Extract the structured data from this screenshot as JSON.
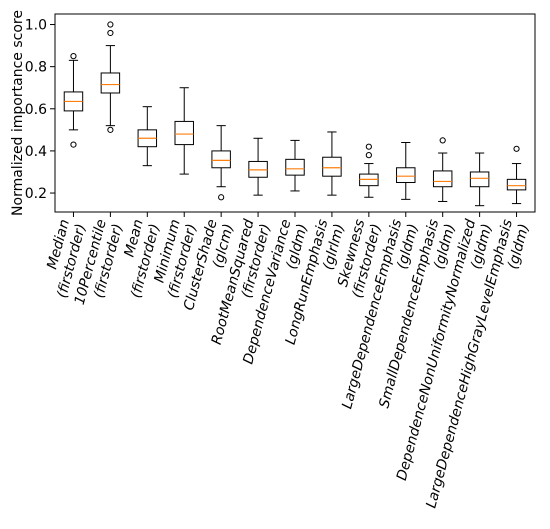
{
  "chart_data": {
    "type": "box",
    "title": "",
    "xlabel": "",
    "ylabel": "Normalized importance score",
    "ylim": [
      0.11,
      1.05
    ],
    "yticks": [
      0.2,
      0.4,
      0.6,
      0.8,
      1.0
    ],
    "ytick_labels": [
      "0.2",
      "0.4",
      "0.6",
      "0.8",
      "1.0"
    ],
    "grid": false,
    "colors": {
      "box": "#000000",
      "median": "#ff7f0e",
      "background": "#ffffff"
    },
    "categories": [
      {
        "lines": [
          "Median",
          "(firstorder)"
        ]
      },
      {
        "lines": [
          "10Percentile",
          "(firstorder)"
        ]
      },
      {
        "lines": [
          "Mean",
          "(firstorder)"
        ]
      },
      {
        "lines": [
          "Minimum",
          "(firstorder)"
        ]
      },
      {
        "lines": [
          "ClusterShade",
          "(glcm)"
        ]
      },
      {
        "lines": [
          "RootMeanSquared",
          "(firstorder)"
        ]
      },
      {
        "lines": [
          "DependenceVariance",
          "(gldm)"
        ]
      },
      {
        "lines": [
          "LongRunEmphasis",
          "(glrlm)"
        ]
      },
      {
        "lines": [
          "Skewness",
          "(firstorder)"
        ]
      },
      {
        "lines": [
          "LargeDependenceEmphasis",
          "(gldm)"
        ]
      },
      {
        "lines": [
          "SmallDependenceEmphasis",
          "(gldm)"
        ]
      },
      {
        "lines": [
          "DependenceNonUniformityNormalized",
          "(gldm)"
        ]
      },
      {
        "lines": [
          "LargeDependenceHighGrayLevelEmphasis",
          "(gldm)"
        ]
      }
    ],
    "boxes": [
      {
        "whislo": 0.5,
        "q1": 0.59,
        "med": 0.635,
        "q3": 0.68,
        "whishi": 0.83,
        "fliers": [
          0.85,
          0.43
        ]
      },
      {
        "whislo": 0.52,
        "q1": 0.675,
        "med": 0.715,
        "q3": 0.77,
        "whishi": 0.9,
        "fliers": [
          1.0,
          0.96,
          0.5
        ]
      },
      {
        "whislo": 0.33,
        "q1": 0.42,
        "med": 0.46,
        "q3": 0.5,
        "whishi": 0.61,
        "fliers": []
      },
      {
        "whislo": 0.29,
        "q1": 0.43,
        "med": 0.48,
        "q3": 0.54,
        "whishi": 0.7,
        "fliers": []
      },
      {
        "whislo": 0.23,
        "q1": 0.32,
        "med": 0.355,
        "q3": 0.4,
        "whishi": 0.52,
        "fliers": [
          0.18
        ]
      },
      {
        "whislo": 0.19,
        "q1": 0.275,
        "med": 0.31,
        "q3": 0.35,
        "whishi": 0.46,
        "fliers": []
      },
      {
        "whislo": 0.21,
        "q1": 0.285,
        "med": 0.315,
        "q3": 0.36,
        "whishi": 0.45,
        "fliers": []
      },
      {
        "whislo": 0.19,
        "q1": 0.28,
        "med": 0.32,
        "q3": 0.37,
        "whishi": 0.49,
        "fliers": []
      },
      {
        "whislo": 0.18,
        "q1": 0.235,
        "med": 0.265,
        "q3": 0.29,
        "whishi": 0.34,
        "fliers": [
          0.42,
          0.38
        ]
      },
      {
        "whislo": 0.17,
        "q1": 0.25,
        "med": 0.28,
        "q3": 0.32,
        "whishi": 0.44,
        "fliers": []
      },
      {
        "whislo": 0.16,
        "q1": 0.23,
        "med": 0.255,
        "q3": 0.305,
        "whishi": 0.39,
        "fliers": [
          0.45
        ]
      },
      {
        "whislo": 0.14,
        "q1": 0.23,
        "med": 0.27,
        "q3": 0.3,
        "whishi": 0.39,
        "fliers": []
      },
      {
        "whislo": 0.15,
        "q1": 0.215,
        "med": 0.235,
        "q3": 0.265,
        "whishi": 0.34,
        "fliers": [
          0.41
        ]
      }
    ]
  }
}
